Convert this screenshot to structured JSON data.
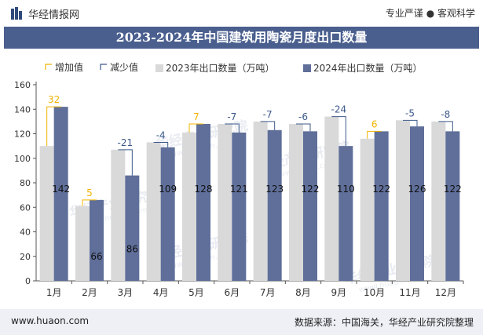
{
  "header": {
    "brand": "华经情报网",
    "tagline": "专业严谨 ● 客观科学"
  },
  "footer": {
    "website": "www.huaon.com",
    "source": "数据来源：中国海关，华经产业研究院整理"
  },
  "watermark": {
    "text": "华经产业研究院",
    "url": "www.huaon.com"
  },
  "colors": {
    "series2023": "#d9d9d9",
    "series2024": "#5f6f9a",
    "increase": "#f0b400",
    "decrease": "#3c5a8a",
    "titlebar": "#4a5f8e"
  },
  "chart_data": {
    "type": "bar",
    "title": "2023-2024年中国建筑用陶瓷月度出口数量",
    "categories": [
      "1月",
      "2月",
      "3月",
      "4月",
      "5月",
      "6月",
      "7月",
      "8月",
      "9月",
      "10月",
      "11月",
      "12月"
    ],
    "series": [
      {
        "name": "2023年出口数量（万吨）",
        "values": [
          110,
          61,
          107,
          113,
          121,
          128,
          130,
          128,
          134,
          116,
          131,
          130
        ]
      },
      {
        "name": "2024年出口数量（万吨）",
        "values": [
          142,
          66,
          86,
          109,
          128,
          121,
          123,
          122,
          110,
          122,
          126,
          122
        ]
      }
    ],
    "changes": [
      32,
      5,
      -21,
      -4,
      7,
      -7,
      -7,
      -6,
      -24,
      6,
      -5,
      -8
    ],
    "change_labels": [
      "32",
      "5",
      "-21",
      "-4",
      "7",
      "-7",
      "-7",
      "-6",
      "-24",
      "6",
      "-5",
      "-8"
    ],
    "legend": {
      "increase": "增加值",
      "decrease": "减少值"
    },
    "ylim": [
      0,
      160
    ],
    "yticks": [
      0,
      20,
      40,
      60,
      80,
      100,
      120,
      140,
      160
    ],
    "legend_position": "top"
  }
}
